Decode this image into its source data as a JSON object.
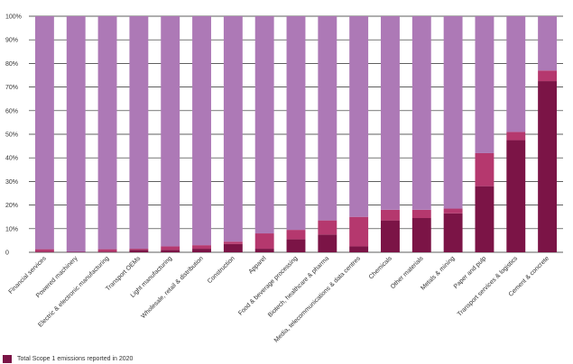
{
  "chart_data": {
    "type": "bar",
    "stacked": true,
    "ylim": [
      0,
      100
    ],
    "y_ticks": [
      "0",
      "10%",
      "20%",
      "30%",
      "40%",
      "50%",
      "60%",
      "70%",
      "80%",
      "90%",
      "100%"
    ],
    "grid": true,
    "categories": [
      "Financial services",
      "Powered machinery",
      "Electric & electronic manufacturing",
      "Transport OEMs",
      "Light manufacturing",
      "Wholesale, retail  & distribution",
      "Construction",
      "Apparel",
      "Food & beverage processing",
      "Biotech, healthcare & pharma",
      "Media, telecommunications & data centres",
      "Chemicals",
      "Other materials",
      "Metals & mining",
      "Paper and pulp",
      "Transport services & logistics",
      "Cement & concrete"
    ],
    "series": [
      {
        "name": "Total Scope 1 emissions reported in 2020",
        "color": "#7b1446",
        "values": [
          0.3,
          0.2,
          0.3,
          1,
          1,
          1.5,
          3.5,
          1.5,
          5.5,
          7.5,
          2.5,
          13.5,
          14.5,
          16.5,
          28,
          47.5,
          72.5
        ]
      },
      {
        "color": "#b5386e",
        "values": [
          1,
          0,
          1,
          0.5,
          1.5,
          1.5,
          1,
          6.5,
          4,
          6,
          12.5,
          4.5,
          3.5,
          2,
          14,
          3.5,
          4.5
        ]
      },
      {
        "color": "#ad79b6",
        "values": [
          98.7,
          99.8,
          98.7,
          98.5,
          97.5,
          97,
          95.5,
          92,
          90.5,
          86.5,
          85,
          82,
          82,
          81.5,
          58,
          49,
          23
        ]
      }
    ],
    "legend": "bottom-left"
  },
  "legend_items": [
    {
      "label": "Total Scope 1 emissions reported in 2020",
      "color": "#7b1446"
    }
  ]
}
